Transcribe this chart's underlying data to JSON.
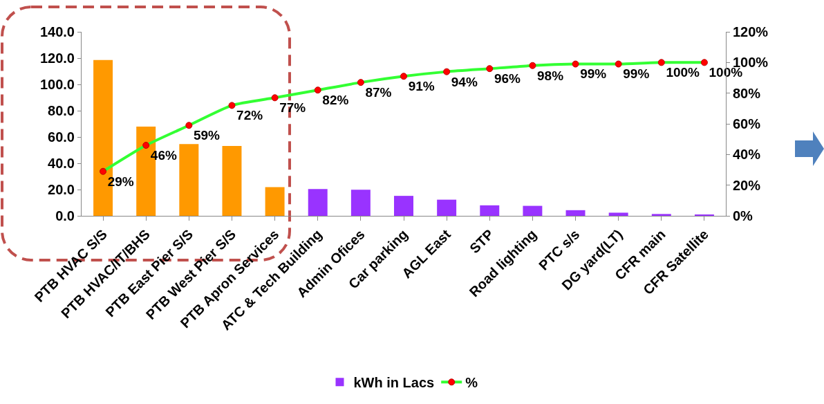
{
  "chart_data": {
    "type": "bar",
    "categories": [
      "PTB HVAC S/S",
      "PTB HVAC/IT/BHS",
      "PTB East Pier S/S",
      "PTB West Pier S/S",
      "PTB Apron Services",
      "ATC & Tech Building",
      "Admin Ofices",
      "Car parking",
      "AGL East",
      "STP",
      "Road lighting",
      "PTC s/s",
      "DG yard(LT)",
      "CFR main",
      "CFR Satellite"
    ],
    "series": [
      {
        "name": "kWh in Lacs",
        "color": "#9933ff",
        "colors": [
          "#ff9900",
          "#ff9900",
          "#ff9900",
          "#ff9900",
          "#ff9900",
          "#9933ff",
          "#9933ff",
          "#9933ff",
          "#9933ff",
          "#9933ff",
          "#9933ff",
          "#9933ff",
          "#9933ff",
          "#9933ff",
          "#9933ff"
        ],
        "values": [
          118.6,
          67.9,
          54.6,
          53.2,
          21.8,
          20.4,
          19.9,
          15.2,
          12.3,
          8,
          7.6,
          4.3,
          2.4,
          1.4,
          1
        ]
      },
      {
        "name": "%",
        "type": "line",
        "axis": "y2",
        "color": "#33ff33",
        "values": [
          29,
          46,
          59,
          72,
          77,
          82,
          87,
          91,
          94,
          96,
          98,
          99,
          99,
          100,
          100
        ],
        "value_labels": [
          "29%",
          "46%",
          "59%",
          "72%",
          "77%",
          "82%",
          "87%",
          "91%",
          "94%",
          "96%",
          "98%",
          "99%",
          "99%",
          "100%",
          "100%"
        ]
      }
    ],
    "ylim": [
      0,
      140
    ],
    "yticks": [
      {
        "value": 0,
        "label": "0.0"
      },
      {
        "value": 20,
        "label": "20.0"
      },
      {
        "value": 40,
        "label": "40.0"
      },
      {
        "value": 60,
        "label": "60.0"
      },
      {
        "value": 80,
        "label": "80.0"
      },
      {
        "value": 100,
        "label": "100.0"
      },
      {
        "value": 120,
        "label": "120.0"
      },
      {
        "value": 140,
        "label": "140.0"
      }
    ],
    "y2lim": [
      0,
      120
    ],
    "y2ticks": [
      {
        "value": 0,
        "label": "0%"
      },
      {
        "value": 20,
        "label": "20%"
      },
      {
        "value": 40,
        "label": "40%"
      },
      {
        "value": 60,
        "label": "60%"
      },
      {
        "value": 80,
        "label": "80%"
      },
      {
        "value": 100,
        "label": "100%"
      },
      {
        "value": 120,
        "label": "120%"
      }
    ],
    "grid": false,
    "legend": "bottom",
    "marker": "circle",
    "line_style": "solid"
  }
}
